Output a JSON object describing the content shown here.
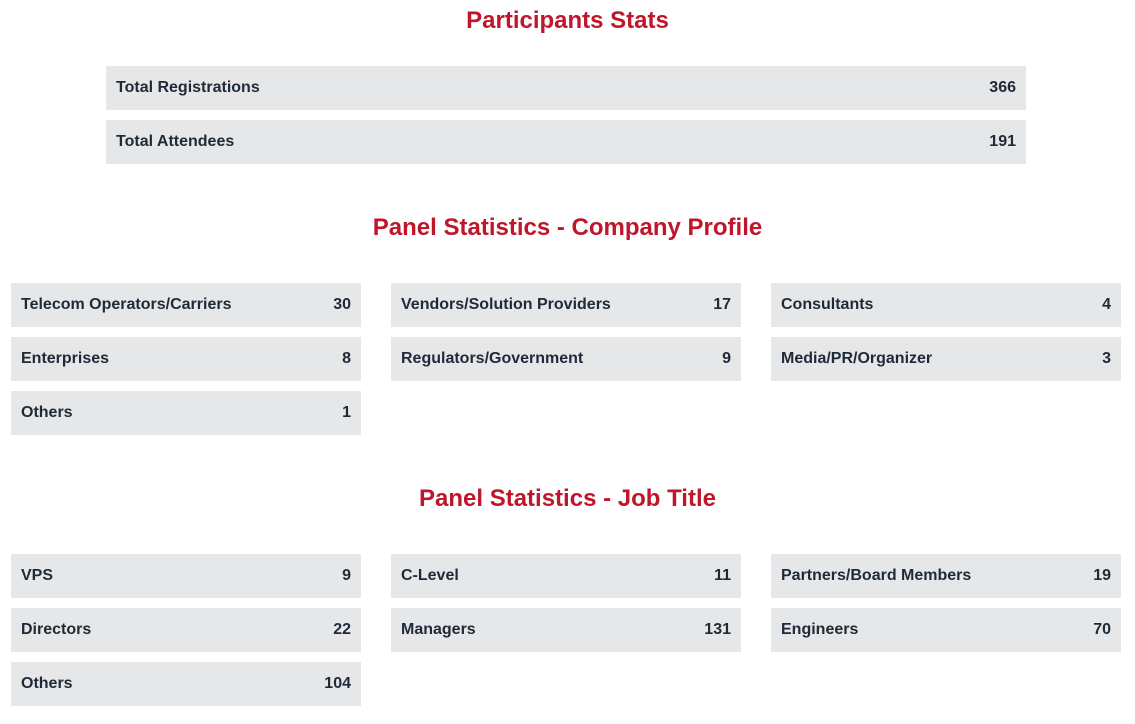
{
  "participants": {
    "title": "Participants Stats",
    "rows": [
      {
        "label": "Total Registrations",
        "value": "366"
      },
      {
        "label": "Total Attendees",
        "value": "191"
      }
    ]
  },
  "company_profile": {
    "title": "Panel Statistics - Company Profile",
    "items": [
      {
        "label": "Telecom Operators/Carriers",
        "value": "30"
      },
      {
        "label": "Vendors/Solution Providers",
        "value": "17"
      },
      {
        "label": "Consultants",
        "value": "4"
      },
      {
        "label": "Enterprises",
        "value": "8"
      },
      {
        "label": "Regulators/Government",
        "value": "9"
      },
      {
        "label": "Media/PR/Organizer",
        "value": "3"
      },
      {
        "label": "Others",
        "value": "1"
      }
    ]
  },
  "job_title": {
    "title": "Panel Statistics - Job Title",
    "items": [
      {
        "label": "VPS",
        "value": "9"
      },
      {
        "label": "C-Level",
        "value": "11"
      },
      {
        "label": "Partners/Board Members",
        "value": "19"
      },
      {
        "label": "Directors",
        "value": "22"
      },
      {
        "label": "Managers",
        "value": "131"
      },
      {
        "label": "Engineers",
        "value": "70"
      },
      {
        "label": "Others",
        "value": "104"
      }
    ]
  },
  "colors": {
    "heading": "#c0162b",
    "row_background": "#e6e7e9",
    "text": "#1f2a37"
  }
}
